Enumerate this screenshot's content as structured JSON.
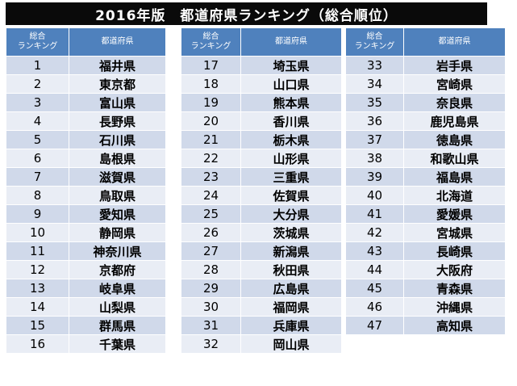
{
  "title": "2016年版　都道府県ランキング（総合順位）",
  "header": {
    "rank": "総合\nランキング",
    "pref": "都道府県"
  },
  "columns": [
    [
      {
        "rank": "1",
        "pref": "福井県"
      },
      {
        "rank": "2",
        "pref": "東京都"
      },
      {
        "rank": "3",
        "pref": "富山県"
      },
      {
        "rank": "4",
        "pref": "長野県"
      },
      {
        "rank": "5",
        "pref": "石川県"
      },
      {
        "rank": "6",
        "pref": "島根県"
      },
      {
        "rank": "7",
        "pref": "滋賀県"
      },
      {
        "rank": "8",
        "pref": "鳥取県"
      },
      {
        "rank": "9",
        "pref": "愛知県"
      },
      {
        "rank": "10",
        "pref": "静岡県"
      },
      {
        "rank": "11",
        "pref": "神奈川県"
      },
      {
        "rank": "12",
        "pref": "京都府"
      },
      {
        "rank": "13",
        "pref": "岐阜県"
      },
      {
        "rank": "14",
        "pref": "山梨県"
      },
      {
        "rank": "15",
        "pref": "群馬県"
      },
      {
        "rank": "16",
        "pref": "千葉県"
      }
    ],
    [
      {
        "rank": "17",
        "pref": "埼玉県"
      },
      {
        "rank": "18",
        "pref": "山口県"
      },
      {
        "rank": "19",
        "pref": "熊本県"
      },
      {
        "rank": "20",
        "pref": "香川県"
      },
      {
        "rank": "21",
        "pref": "栃木県"
      },
      {
        "rank": "22",
        "pref": "山形県"
      },
      {
        "rank": "23",
        "pref": "三重県"
      },
      {
        "rank": "24",
        "pref": "佐賀県"
      },
      {
        "rank": "25",
        "pref": "大分県"
      },
      {
        "rank": "26",
        "pref": "茨城県"
      },
      {
        "rank": "27",
        "pref": "新潟県"
      },
      {
        "rank": "28",
        "pref": "秋田県"
      },
      {
        "rank": "29",
        "pref": "広島県"
      },
      {
        "rank": "30",
        "pref": "福岡県"
      },
      {
        "rank": "31",
        "pref": "兵庫県"
      },
      {
        "rank": "32",
        "pref": "岡山県"
      }
    ],
    [
      {
        "rank": "33",
        "pref": "岩手県"
      },
      {
        "rank": "34",
        "pref": "宮崎県"
      },
      {
        "rank": "35",
        "pref": "奈良県"
      },
      {
        "rank": "36",
        "pref": "鹿児島県"
      },
      {
        "rank": "37",
        "pref": "徳島県"
      },
      {
        "rank": "38",
        "pref": "和歌山県"
      },
      {
        "rank": "39",
        "pref": "福島県"
      },
      {
        "rank": "40",
        "pref": "北海道"
      },
      {
        "rank": "41",
        "pref": "愛媛県"
      },
      {
        "rank": "42",
        "pref": "宮城県"
      },
      {
        "rank": "43",
        "pref": "長崎県"
      },
      {
        "rank": "44",
        "pref": "大阪府"
      },
      {
        "rank": "45",
        "pref": "青森県"
      },
      {
        "rank": "46",
        "pref": "沖縄県"
      },
      {
        "rank": "47",
        "pref": "高知県"
      }
    ]
  ]
}
